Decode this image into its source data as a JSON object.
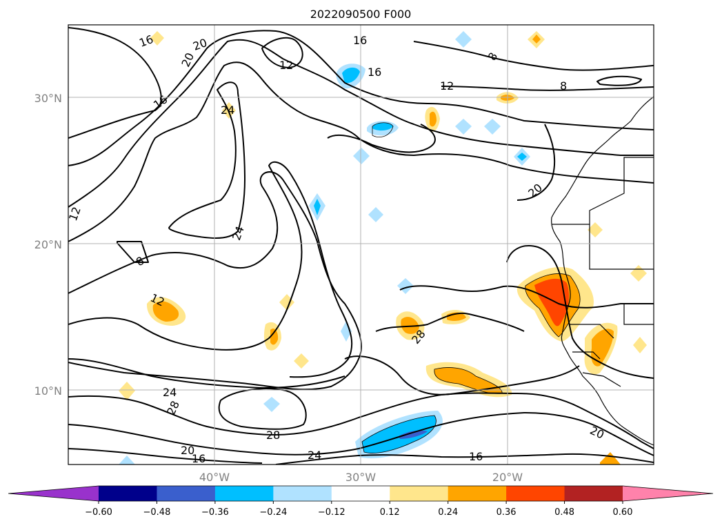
{
  "title": "2022090500 F000",
  "lat_labels": [
    "30°N",
    "20°N",
    "10°N"
  ],
  "lon_labels": [
    "40°W",
    "30°W",
    "20°W"
  ],
  "colorbar": {
    "ticks": [
      "−0.60",
      "−0.48",
      "−0.36",
      "−0.24",
      "−0.12",
      "0.12",
      "0.24",
      "0.36",
      "0.48",
      "0.60"
    ],
    "colors": [
      "#9932cc",
      "#00008b",
      "#3a5fcd",
      "#00bfff",
      "#b0e2ff",
      "#ffffff",
      "#ffe68c",
      "#ffa500",
      "#ff4500",
      "#b22222",
      "#ff82ab"
    ]
  },
  "contour_labels": [
    "16",
    "20",
    "20",
    "16",
    "12",
    "16",
    "8",
    "12",
    "8",
    "16",
    "24",
    "12",
    "20",
    "24",
    "8",
    "12",
    "28",
    "24",
    "28",
    "28",
    "24",
    "20",
    "16",
    "16",
    "20"
  ]
}
